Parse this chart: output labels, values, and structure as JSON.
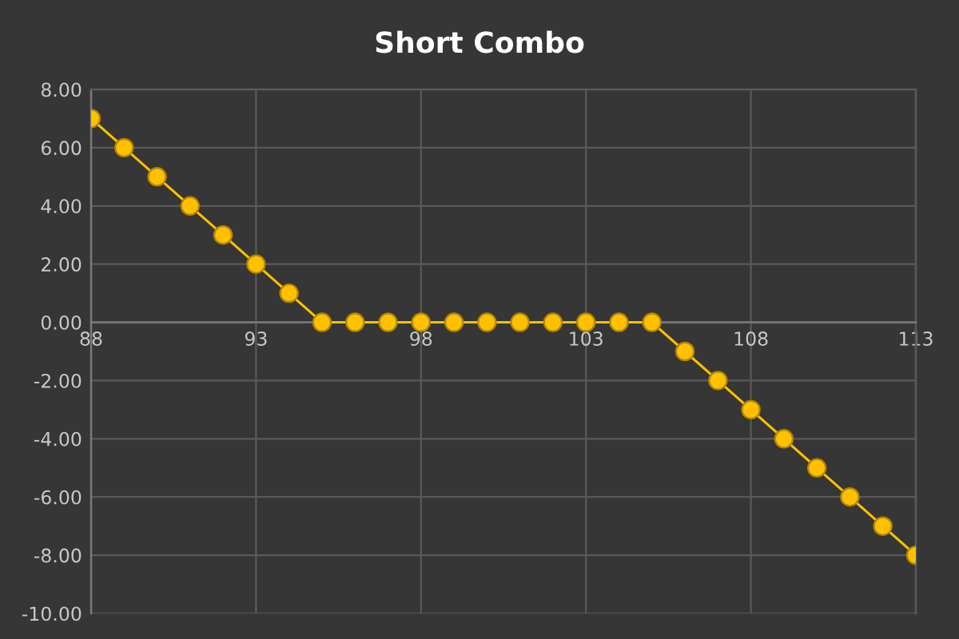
{
  "chart_data": {
    "type": "line",
    "title": "Short Combo",
    "x": [
      88,
      89,
      90,
      91,
      92,
      93,
      94,
      95,
      96,
      97,
      98,
      99,
      100,
      101,
      102,
      103,
      104,
      105,
      106,
      107,
      108,
      109,
      110,
      111,
      112,
      113
    ],
    "series": [
      {
        "color": "#ffc000",
        "values": [
          7,
          6,
          5,
          4,
          3,
          2,
          1,
          0,
          0,
          0,
          0,
          0,
          0,
          0,
          0,
          0,
          0,
          0,
          -1,
          -2,
          -3,
          -4,
          -5,
          -6,
          -7,
          -8
        ]
      }
    ],
    "xlim": [
      88,
      113
    ],
    "xticks": [
      88,
      93,
      98,
      103,
      108,
      113
    ],
    "ylim": [
      -10,
      8
    ],
    "yticks": [
      {
        "value": 8,
        "label": "8.00"
      },
      {
        "value": 6,
        "label": "6.00"
      },
      {
        "value": 4,
        "label": "4.00"
      },
      {
        "value": 2,
        "label": "2.00"
      },
      {
        "value": 0,
        "label": "0.00"
      },
      {
        "value": -2,
        "label": "-2.00"
      },
      {
        "value": -4,
        "label": "-4.00"
      },
      {
        "value": -6,
        "label": "-6.00"
      },
      {
        "value": -8,
        "label": "-8.00"
      },
      {
        "value": -10,
        "label": "-10.00"
      }
    ],
    "grid": true,
    "marker": "circle",
    "line_style": "solid"
  }
}
